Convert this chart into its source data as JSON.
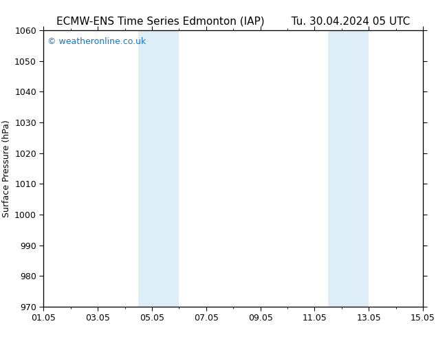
{
  "title_left": "ECMW-ENS Time Series Edmonton (IAP)",
  "title_right": "Tu. 30.04.2024 05 UTC",
  "ylabel": "Surface Pressure (hPa)",
  "ylim": [
    970,
    1060
  ],
  "yticks": [
    970,
    980,
    990,
    1000,
    1010,
    1020,
    1030,
    1040,
    1050,
    1060
  ],
  "xtick_labels": [
    "01.05",
    "03.05",
    "05.05",
    "07.05",
    "09.05",
    "11.05",
    "13.05",
    "15.05"
  ],
  "xtick_positions_days": [
    0,
    2,
    4,
    6,
    8,
    10,
    12,
    14
  ],
  "x_min": 0,
  "x_max": 14,
  "shaded_bands": [
    {
      "x_start_day": 3.5,
      "x_end_day": 5.0
    },
    {
      "x_start_day": 10.5,
      "x_end_day": 12.0
    }
  ],
  "shaded_color": "#ddeef8",
  "background_color": "#ffffff",
  "watermark_text": "© weatheronline.co.uk",
  "watermark_color": "#1177cc",
  "watermark_fontsize": 9,
  "title_fontsize": 11,
  "axis_label_fontsize": 9,
  "tick_fontsize": 9
}
